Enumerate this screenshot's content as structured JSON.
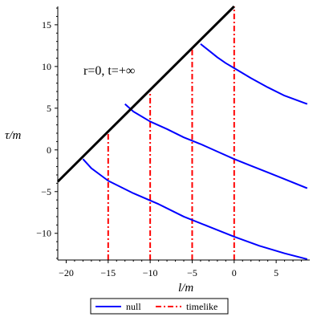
{
  "chart_data": {
    "type": "line",
    "title": "",
    "xlabel": "l/m",
    "ylabel": "τ/m",
    "xlim": [
      -21,
      9
    ],
    "ylim": [
      -13.2,
      17.2
    ],
    "xticks": [
      -20,
      -15,
      -10,
      -5,
      0,
      5
    ],
    "xtick_labels": [
      "−20",
      "−15",
      "−10",
      "−5",
      "0",
      "5"
    ],
    "yticks": [
      -10,
      -5,
      0,
      5,
      10,
      15
    ],
    "ytick_labels": [
      "−10",
      "−5",
      "0",
      "5",
      "10",
      "15"
    ],
    "grid": false,
    "legend_placement": "bottom",
    "annotation": "r=0, t=+∞",
    "boundary_line": {
      "color": "#000000",
      "points": [
        [
          -21,
          -3.8
        ],
        [
          0,
          17.2
        ]
      ]
    },
    "legend": [
      {
        "label": "null",
        "style": "solid",
        "color": "#0000ff"
      },
      {
        "label": "timelike",
        "style": "dash-dot",
        "color": "#ff0000"
      }
    ],
    "series": [
      {
        "group": "null",
        "color": "#0000ff",
        "style": "solid",
        "x": [
          -18,
          -17,
          -15,
          -12,
          -9,
          -6,
          -3,
          0,
          3,
          6,
          8.7
        ],
        "y": [
          -1.1,
          -2.2,
          -3.7,
          -5.2,
          -6.5,
          -8.0,
          -9.2,
          -10.4,
          -11.5,
          -12.4,
          -13.1
        ]
      },
      {
        "group": "null",
        "color": "#0000ff",
        "style": "solid",
        "x": [
          -13,
          -12,
          -10,
          -8,
          -6,
          -4,
          -2,
          0,
          2,
          4,
          6,
          8.7
        ],
        "y": [
          5.5,
          4.6,
          3.4,
          2.5,
          1.5,
          0.7,
          -0.2,
          -1.1,
          -1.9,
          -2.7,
          -3.5,
          -4.6
        ]
      },
      {
        "group": "null",
        "color": "#0000ff",
        "style": "solid",
        "x": [
          -4,
          -3,
          -2,
          -1,
          0,
          2,
          4,
          6,
          8.7
        ],
        "y": [
          12.7,
          11.9,
          11.1,
          10.4,
          9.8,
          8.6,
          7.5,
          6.5,
          5.5
        ]
      },
      {
        "group": "timelike",
        "color": "#ff0000",
        "style": "dash-dot",
        "x": [
          -15,
          -15
        ],
        "y": [
          -13.2,
          2.2
        ]
      },
      {
        "group": "timelike",
        "color": "#ff0000",
        "style": "dash-dot",
        "x": [
          -10,
          -10
        ],
        "y": [
          -13.2,
          7.2
        ]
      },
      {
        "group": "timelike",
        "color": "#ff0000",
        "style": "dash-dot",
        "x": [
          -5,
          -5
        ],
        "y": [
          -13.2,
          12.2
        ]
      },
      {
        "group": "timelike",
        "color": "#ff0000",
        "style": "dash-dot",
        "x": [
          0,
          0
        ],
        "y": [
          -13.2,
          17.2
        ]
      }
    ]
  }
}
